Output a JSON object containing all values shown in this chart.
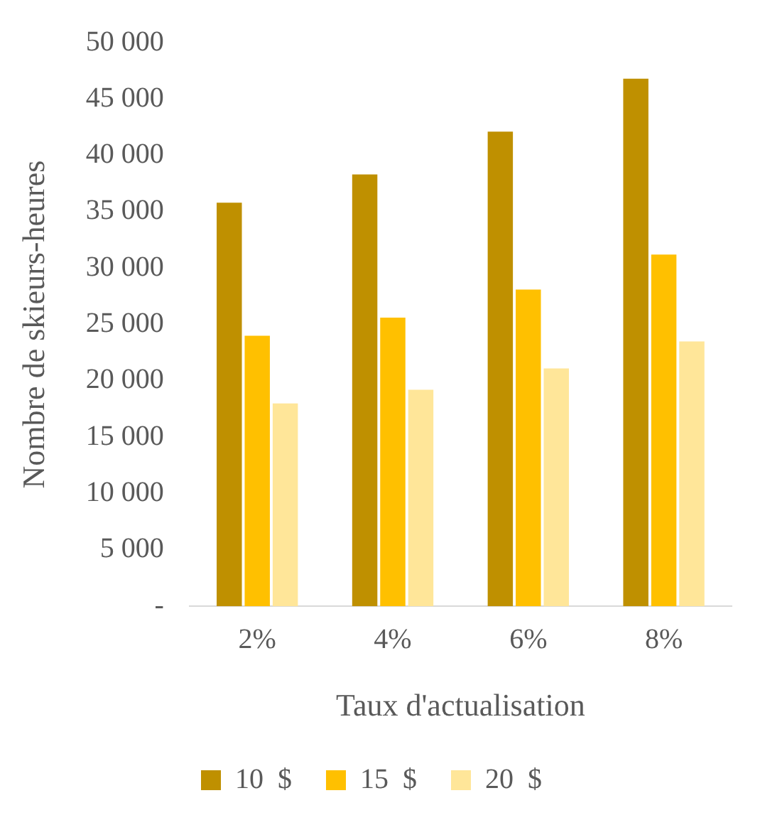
{
  "chart_data": {
    "type": "bar",
    "xlabel": "Taux d'actualisation",
    "ylabel": "Nombre de skieurs-heures",
    "categories": [
      "2%",
      "4%",
      "6%",
      "8%"
    ],
    "series": [
      {
        "name": "10  $",
        "color": "#bf9000",
        "values": [
          35800,
          38300,
          42100,
          46800
        ]
      },
      {
        "name": "15  $",
        "color": "#ffc000",
        "values": [
          24000,
          25600,
          28100,
          31200
        ]
      },
      {
        "name": "20  $",
        "color": "#ffe699",
        "values": [
          18000,
          19200,
          21100,
          23500
        ]
      }
    ],
    "ylim": [
      0,
      50000
    ],
    "yticks": [
      {
        "value": 0,
        "label": "-"
      },
      {
        "value": 5000,
        "label": "5 000"
      },
      {
        "value": 10000,
        "label": "10 000"
      },
      {
        "value": 15000,
        "label": "15 000"
      },
      {
        "value": 20000,
        "label": "20 000"
      },
      {
        "value": 25000,
        "label": "25 000"
      },
      {
        "value": 30000,
        "label": "30 000"
      },
      {
        "value": 35000,
        "label": "35 000"
      },
      {
        "value": 40000,
        "label": "40 000"
      },
      {
        "value": 45000,
        "label": "45 000"
      },
      {
        "value": 50000,
        "label": "50 000"
      }
    ],
    "grid": false,
    "legend": "bottom"
  }
}
